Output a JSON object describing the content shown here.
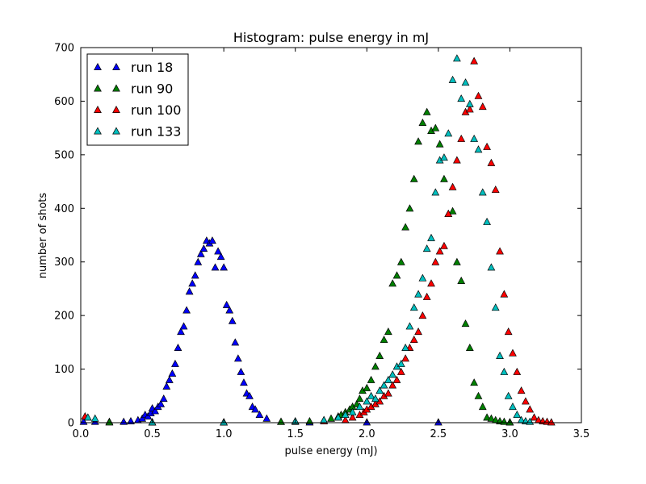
{
  "chart_data": {
    "type": "scatter",
    "title": "Histogram: pulse energy in mJ",
    "xlabel": "pulse energy (mJ)",
    "ylabel": "number of shots",
    "xlim": [
      0.0,
      3.5
    ],
    "ylim": [
      0,
      700
    ],
    "xticks": [
      0.0,
      0.5,
      1.0,
      1.5,
      2.0,
      2.5,
      3.0,
      3.5
    ],
    "xtick_labels": [
      "0.0",
      "0.5",
      "1.0",
      "1.5",
      "2.0",
      "2.5",
      "3.0",
      "3.5"
    ],
    "yticks": [
      0,
      100,
      200,
      300,
      400,
      500,
      600,
      700
    ],
    "ytick_labels": [
      "0",
      "100",
      "200",
      "300",
      "400",
      "500",
      "600",
      "700"
    ],
    "grid": false,
    "legend": {
      "position": "top-left"
    },
    "marker": "triangle-up",
    "series": [
      {
        "name": "run 18",
        "color": "#0000ff",
        "x": [
          0.02,
          0.1,
          0.2,
          0.3,
          0.35,
          0.4,
          0.43,
          0.45,
          0.47,
          0.49,
          0.5,
          0.52,
          0.54,
          0.56,
          0.58,
          0.6,
          0.62,
          0.64,
          0.66,
          0.68,
          0.7,
          0.72,
          0.74,
          0.76,
          0.78,
          0.8,
          0.82,
          0.84,
          0.86,
          0.88,
          0.9,
          0.92,
          0.94,
          0.96,
          0.98,
          1.0,
          1.02,
          1.04,
          1.06,
          1.08,
          1.1,
          1.12,
          1.14,
          1.16,
          1.18,
          1.2,
          1.22,
          1.25,
          1.3,
          1.4,
          1.6,
          2.0,
          2.5,
          3.0
        ],
        "y": [
          2,
          2,
          2,
          2,
          3,
          5,
          8,
          15,
          12,
          18,
          27,
          22,
          30,
          35,
          45,
          68,
          80,
          92,
          110,
          140,
          170,
          180,
          210,
          245,
          260,
          275,
          300,
          315,
          325,
          340,
          335,
          340,
          290,
          320,
          310,
          290,
          220,
          210,
          190,
          150,
          120,
          95,
          75,
          55,
          50,
          30,
          25,
          15,
          8,
          2,
          1,
          1,
          1,
          1
        ]
      },
      {
        "name": "run 90",
        "color": "#008000",
        "x": [
          0.2,
          0.5,
          1.0,
          1.4,
          1.6,
          1.7,
          1.75,
          1.8,
          1.82,
          1.85,
          1.88,
          1.9,
          1.93,
          1.95,
          1.97,
          2.0,
          2.03,
          2.06,
          2.09,
          2.12,
          2.15,
          2.18,
          2.21,
          2.24,
          2.27,
          2.3,
          2.33,
          2.36,
          2.39,
          2.42,
          2.45,
          2.48,
          2.51,
          2.54,
          2.57,
          2.6,
          2.63,
          2.66,
          2.69,
          2.72,
          2.75,
          2.78,
          2.81,
          2.84,
          2.87,
          2.9,
          2.93,
          2.96,
          3.0
        ],
        "y": [
          1,
          1,
          1,
          2,
          3,
          5,
          8,
          12,
          15,
          20,
          25,
          30,
          35,
          45,
          60,
          65,
          80,
          105,
          125,
          155,
          170,
          260,
          275,
          300,
          365,
          400,
          455,
          525,
          560,
          580,
          545,
          550,
          520,
          455,
          390,
          395,
          300,
          265,
          185,
          140,
          75,
          50,
          30,
          10,
          8,
          5,
          3,
          2,
          1
        ]
      },
      {
        "name": "run 100",
        "color": "#ff0000",
        "x": [
          0.03,
          0.5,
          1.0,
          1.5,
          1.7,
          1.85,
          1.9,
          1.95,
          1.98,
          2.0,
          2.03,
          2.06,
          2.09,
          2.12,
          2.15,
          2.18,
          2.21,
          2.24,
          2.27,
          2.3,
          2.33,
          2.36,
          2.39,
          2.42,
          2.45,
          2.48,
          2.51,
          2.54,
          2.57,
          2.6,
          2.63,
          2.66,
          2.69,
          2.72,
          2.75,
          2.78,
          2.81,
          2.84,
          2.87,
          2.9,
          2.93,
          2.96,
          2.99,
          3.02,
          3.05,
          3.08,
          3.11,
          3.14,
          3.17,
          3.2,
          3.23,
          3.26,
          3.29
        ],
        "y": [
          12,
          1,
          1,
          2,
          3,
          5,
          10,
          15,
          20,
          25,
          30,
          35,
          40,
          50,
          55,
          70,
          80,
          95,
          120,
          140,
          155,
          170,
          200,
          235,
          260,
          300,
          320,
          330,
          390,
          440,
          490,
          530,
          580,
          585,
          675,
          610,
          590,
          515,
          485,
          435,
          320,
          240,
          170,
          130,
          95,
          60,
          40,
          25,
          10,
          5,
          3,
          2,
          1
        ]
      },
      {
        "name": "run 133",
        "color": "#00bfbf",
        "x": [
          0.05,
          0.1,
          0.5,
          1.0,
          1.5,
          1.7,
          1.8,
          1.85,
          1.9,
          1.95,
          2.0,
          2.03,
          2.06,
          2.09,
          2.12,
          2.15,
          2.18,
          2.21,
          2.24,
          2.27,
          2.3,
          2.33,
          2.36,
          2.39,
          2.42,
          2.45,
          2.48,
          2.51,
          2.54,
          2.57,
          2.6,
          2.63,
          2.66,
          2.69,
          2.72,
          2.75,
          2.78,
          2.81,
          2.84,
          2.87,
          2.9,
          2.93,
          2.96,
          2.99,
          3.02,
          3.05,
          3.08,
          3.11,
          3.14
        ],
        "y": [
          10,
          8,
          1,
          1,
          3,
          5,
          10,
          15,
          20,
          30,
          40,
          50,
          45,
          60,
          70,
          80,
          90,
          105,
          110,
          140,
          180,
          215,
          240,
          270,
          325,
          345,
          430,
          490,
          495,
          540,
          640,
          680,
          605,
          635,
          595,
          530,
          510,
          430,
          375,
          290,
          215,
          125,
          95,
          50,
          30,
          15,
          5,
          3,
          2
        ]
      }
    ]
  }
}
